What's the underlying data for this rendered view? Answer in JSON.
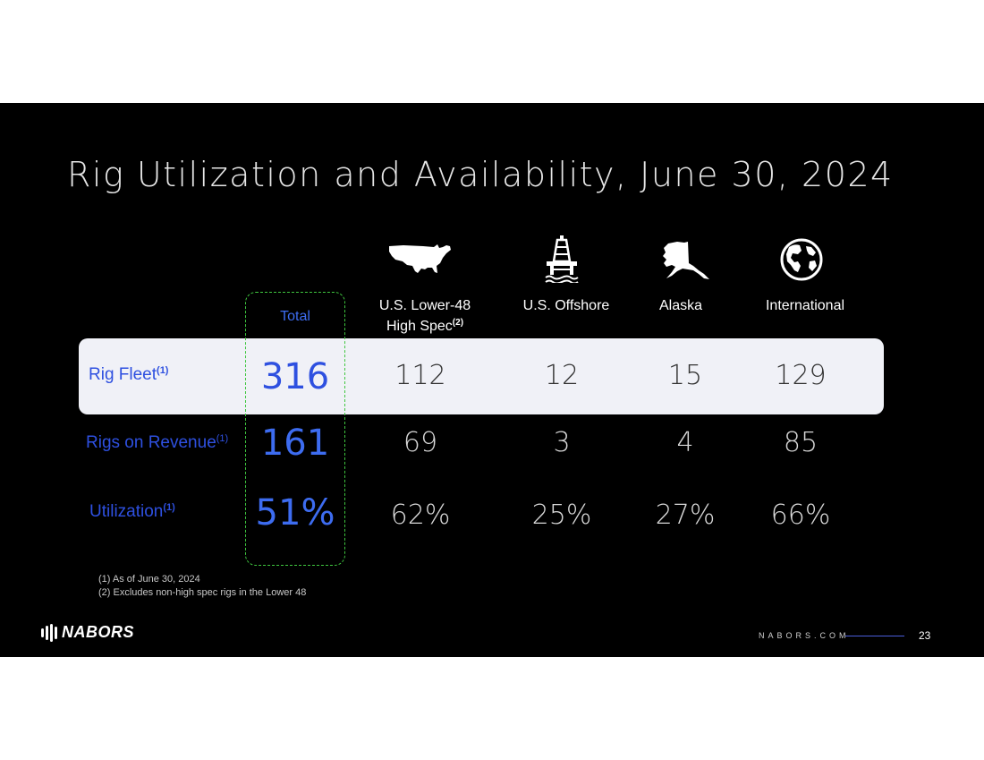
{
  "slide": {
    "title": "Rig Utilization and Availability, June 30, 2024",
    "columns": {
      "total": "Total",
      "lower48_line1": "U.S. Lower-48",
      "lower48_line2": "High Spec",
      "lower48_sup": "(2)",
      "offshore": "U.S. Offshore",
      "alaska": "Alaska",
      "international": "International"
    },
    "icons": {
      "lower48": "usa-map-icon",
      "offshore": "oil-platform-icon",
      "alaska": "alaska-map-icon",
      "international": "globe-icon"
    },
    "rows": [
      {
        "label": "Rig Fleet",
        "sup": "(1)",
        "total": "316",
        "lower48": "112",
        "offshore": "12",
        "alaska": "15",
        "international": "129"
      },
      {
        "label": "Rigs on Revenue",
        "sup": "(1)",
        "total": "161",
        "lower48": "69",
        "offshore": "3",
        "alaska": "4",
        "international": "85"
      },
      {
        "label": "Utilization",
        "sup": "(1)",
        "total": "51%",
        "lower48": "62%",
        "offshore": "25%",
        "alaska": "27%",
        "international": "66%"
      }
    ],
    "footnotes": [
      "(1)  As of June 30, 2024",
      "(2)  Excludes non-high spec rigs in the Lower 48"
    ],
    "footer": {
      "logo": "NABORS",
      "site": "NABORS.COM",
      "page": "23"
    },
    "colors": {
      "accent_blue": "#2e50e0",
      "total_highlight": "#3d6cf0",
      "dashed_box": "#3fc63f",
      "band": "#f0f1f7",
      "background": "#000000"
    }
  }
}
